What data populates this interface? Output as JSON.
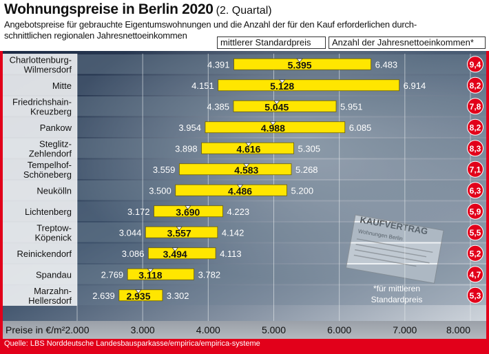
{
  "title": "Wohnungspreise in Berlin 2020",
  "title_suffix": "(2. Quartal)",
  "description_line1": "Angebotspreise für gebrauchte Eigentumswohnungen und die Anzahl der für den Kauf erforderlichen durch-",
  "description_line2": "schnittlichen regionalen Jahresnettoeinkommen",
  "header_box_price": "mittlerer Standardpreis",
  "header_box_income": "Anzahl der Jahresnettoeinkommen*",
  "footnote_line1": "*für mittleren",
  "footnote_line2": "Standardpreis",
  "source": "Quelle: LBS Norddeutsche Landesbausparkasse/empirica/empirica-systeme",
  "contract_title": "KAUFVERTRAG",
  "contract_subtitle": "Wohnungen Berlin",
  "colors": {
    "bar": "#ffe600",
    "accent_red": "#e2001a",
    "row_band": "#6b7f92"
  },
  "chart_data": {
    "type": "bar",
    "xlabel": "Preise in €/m²",
    "xlim": [
      2000,
      8000
    ],
    "x_ticks": [
      2000,
      3000,
      4000,
      5000,
      6000,
      7000,
      8000
    ],
    "x_tick_labels": [
      "2.000",
      "3.000",
      "4.000",
      "5.000",
      "6.000",
      "7.000",
      "8.000"
    ],
    "categories": [
      [
        "Charlottenburg-",
        "Wilmersdorf"
      ],
      [
        "Mitte"
      ],
      [
        "Friedrichshain-",
        "Kreuzberg"
      ],
      [
        "Pankow"
      ],
      [
        "Steglitz-",
        "Zehlendorf"
      ],
      [
        "Tempelhof-",
        "Schöneberg"
      ],
      [
        "Neukölln"
      ],
      [
        "Lichtenberg"
      ],
      [
        "Treptow-",
        "Köpenick"
      ],
      [
        "Reinickendorf"
      ],
      [
        "Spandau"
      ],
      [
        "Marzahn-",
        "Hellersdorf"
      ]
    ],
    "low": [
      4391,
      4151,
      4385,
      3954,
      3898,
      3559,
      3500,
      3172,
      3044,
      3086,
      2769,
      2639
    ],
    "median": [
      5395,
      5128,
      5045,
      4988,
      4616,
      4583,
      4486,
      3690,
      3557,
      3494,
      3118,
      2935
    ],
    "high": [
      6483,
      6914,
      5951,
      6085,
      5305,
      5268,
      5200,
      4223,
      4142,
      4113,
      3782,
      3302
    ],
    "low_labels": [
      "4.391",
      "4.151",
      "4.385",
      "3.954",
      "3.898",
      "3.559",
      "3.500",
      "3.172",
      "3.044",
      "3.086",
      "2.769",
      "2.639"
    ],
    "median_labels": [
      "5.395",
      "5.128",
      "5.045",
      "4.988",
      "4.616",
      "4.583",
      "4.486",
      "3.690",
      "3.557",
      "3.494",
      "3.118",
      "2.935"
    ],
    "high_labels": [
      "6.483",
      "6.914",
      "5.951",
      "6.085",
      "5.305",
      "5.268",
      "5.200",
      "4.223",
      "4.142",
      "4.113",
      "3.782",
      "3.302"
    ],
    "income_multiples": [
      "9,4",
      "8,2",
      "7,8",
      "8,2",
      "8,3",
      "7,1",
      "6,3",
      "5,9",
      "5,5",
      "5,2",
      "4,7",
      "5,3"
    ]
  }
}
